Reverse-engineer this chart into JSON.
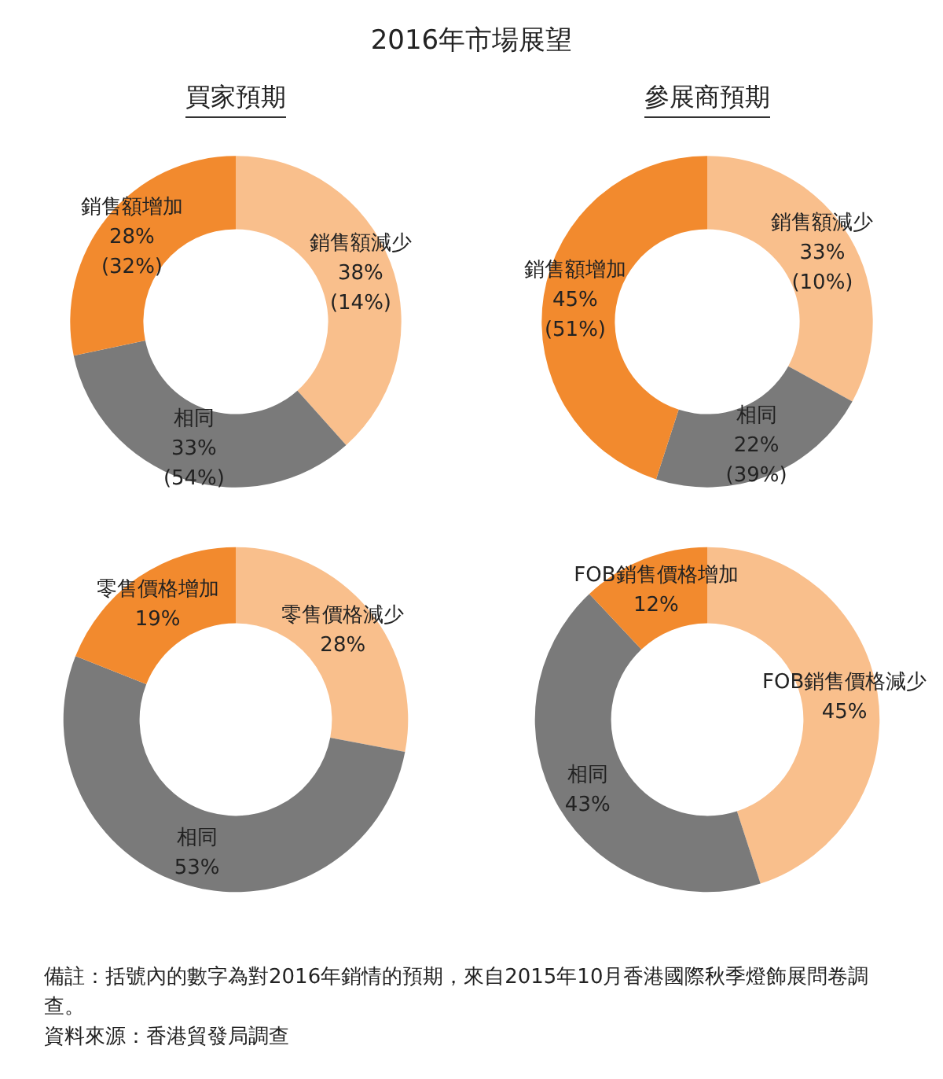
{
  "chart_data": [
    {
      "type": "donut",
      "title": "2016年市場展望",
      "subtitle": "買家預期",
      "categories": [
        "銷售額減少",
        "相同",
        "銷售額增加"
      ],
      "values": [
        38,
        33,
        28
      ],
      "colors": [
        "#f9bf8c",
        "#7a7a7a",
        "#f28a2e"
      ],
      "value_labels": [
        "38%\n(14%)",
        "33%\n(54%)",
        "28%\n(32%)"
      ]
    },
    {
      "type": "donut",
      "subtitle": "參展商預期",
      "categories": [
        "銷售額減少",
        "相同",
        "銷售額增加"
      ],
      "values": [
        33,
        22,
        45
      ],
      "colors": [
        "#f9bf8c",
        "#7a7a7a",
        "#f28a2e"
      ],
      "value_labels": [
        "33%\n(10%)",
        "22%\n(39%)",
        "45%\n(51%)"
      ]
    },
    {
      "type": "donut",
      "categories": [
        "零售價格減少",
        "相同",
        "零售價格增加"
      ],
      "values": [
        28,
        53,
        19
      ],
      "colors": [
        "#f9bf8c",
        "#7a7a7a",
        "#f28a2e"
      ],
      "value_labels": [
        "28%",
        "53%",
        "19%"
      ]
    },
    {
      "type": "donut",
      "categories": [
        "FOB銷售價格減少",
        "相同",
        "FOB銷售價格增加"
      ],
      "values": [
        45,
        43,
        12
      ],
      "colors": [
        "#f9bf8c",
        "#7a7a7a",
        "#f28a2e"
      ],
      "value_labels": [
        "45%",
        "43%",
        "12%"
      ],
      "annotations": [
        "備註：括號內的數字為對2016年銷情的預期，來自2015年10月香港國際秋季燈飾展問卷調查。",
        "資料來源：香港貿發局調查"
      ]
    }
  ]
}
